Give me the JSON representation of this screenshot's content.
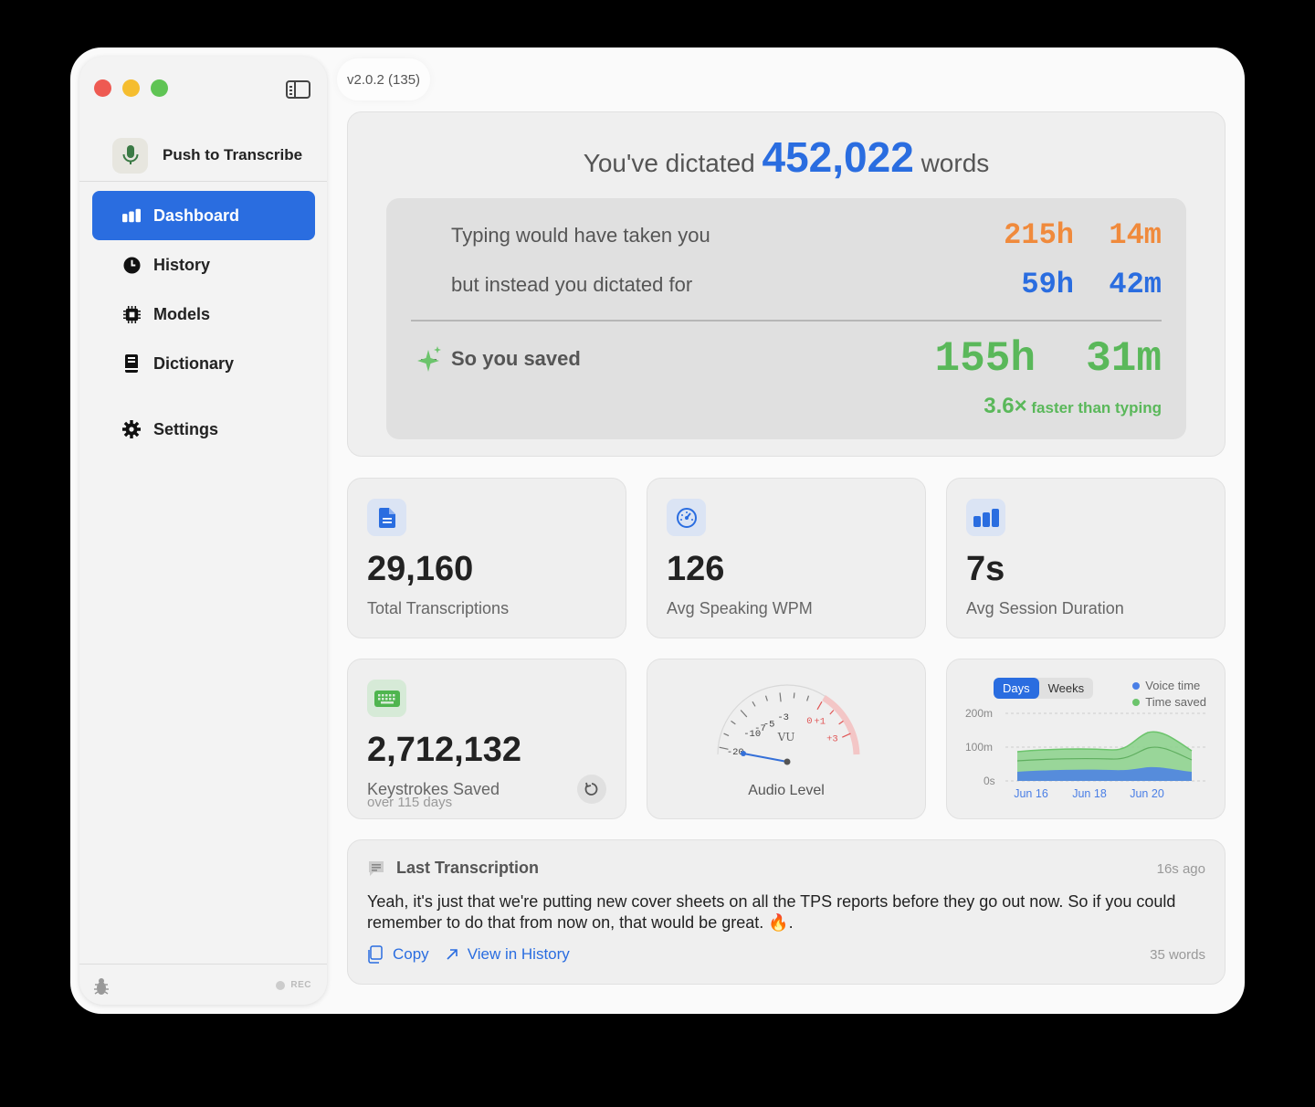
{
  "sidebar": {
    "app_name": "Push to Transcribe",
    "items": [
      {
        "label": "Dashboard",
        "icon": "bar-chart-icon",
        "active": true
      },
      {
        "label": "History",
        "icon": "clock-icon"
      },
      {
        "label": "Models",
        "icon": "chip-icon"
      },
      {
        "label": "Dictionary",
        "icon": "book-icon"
      },
      {
        "label": "Settings",
        "icon": "gear-icon"
      }
    ],
    "rec_label": "REC"
  },
  "version": "v2.0.2 (135)",
  "hero": {
    "title_prefix": "You've dictated",
    "word_count": "452,022",
    "title_suffix": "words",
    "typing_label": "Typing would have taken you",
    "typing_hours": "215h",
    "typing_minutes": "14m",
    "dictated_label": "but instead you dictated for",
    "dictated_hours": "59h",
    "dictated_minutes": "42m",
    "saved_label": "So you saved",
    "saved_hours": "155h",
    "saved_minutes": "31m",
    "faster_value": "3.6×",
    "faster_label": "faster than typing"
  },
  "stats": {
    "total_transcriptions": {
      "value": "29,160",
      "label": "Total Transcriptions"
    },
    "avg_wpm": {
      "value": "126",
      "label": "Avg Speaking WPM"
    },
    "avg_session": {
      "value": "7s",
      "label": "Avg Session Duration"
    },
    "keystrokes": {
      "value": "2,712,132",
      "label": "Keystrokes Saved",
      "sub": "over 115 days"
    }
  },
  "gauge": {
    "caption": "Audio Level",
    "unit": "VU",
    "ticks": [
      "-20",
      "-10",
      "-7",
      "-5",
      "-3",
      "0",
      "+1",
      "+3"
    ],
    "level": -20
  },
  "chart_data": {
    "type": "area",
    "segments": [
      "Days",
      "Weeks"
    ],
    "selected_segment": "Days",
    "series": [
      {
        "name": "Voice time",
        "color": "#4a7fe6"
      },
      {
        "name": "Time saved",
        "color": "#6cc46c"
      }
    ],
    "y_ticks": [
      "200m",
      "100m",
      "0s"
    ],
    "x_ticks": [
      "Jun 16",
      "Jun 18",
      "Jun 20"
    ],
    "ylim": [
      0,
      200
    ]
  },
  "last": {
    "title": "Last Transcription",
    "time": "16s ago",
    "text": "Yeah, it's just that we're putting new cover sheets on all the TPS reports before they go out now. So if you could remember to do that from now on, that would be great. 🔥.",
    "copy_label": "Copy",
    "view_label": "View in History",
    "words": "35 words"
  }
}
